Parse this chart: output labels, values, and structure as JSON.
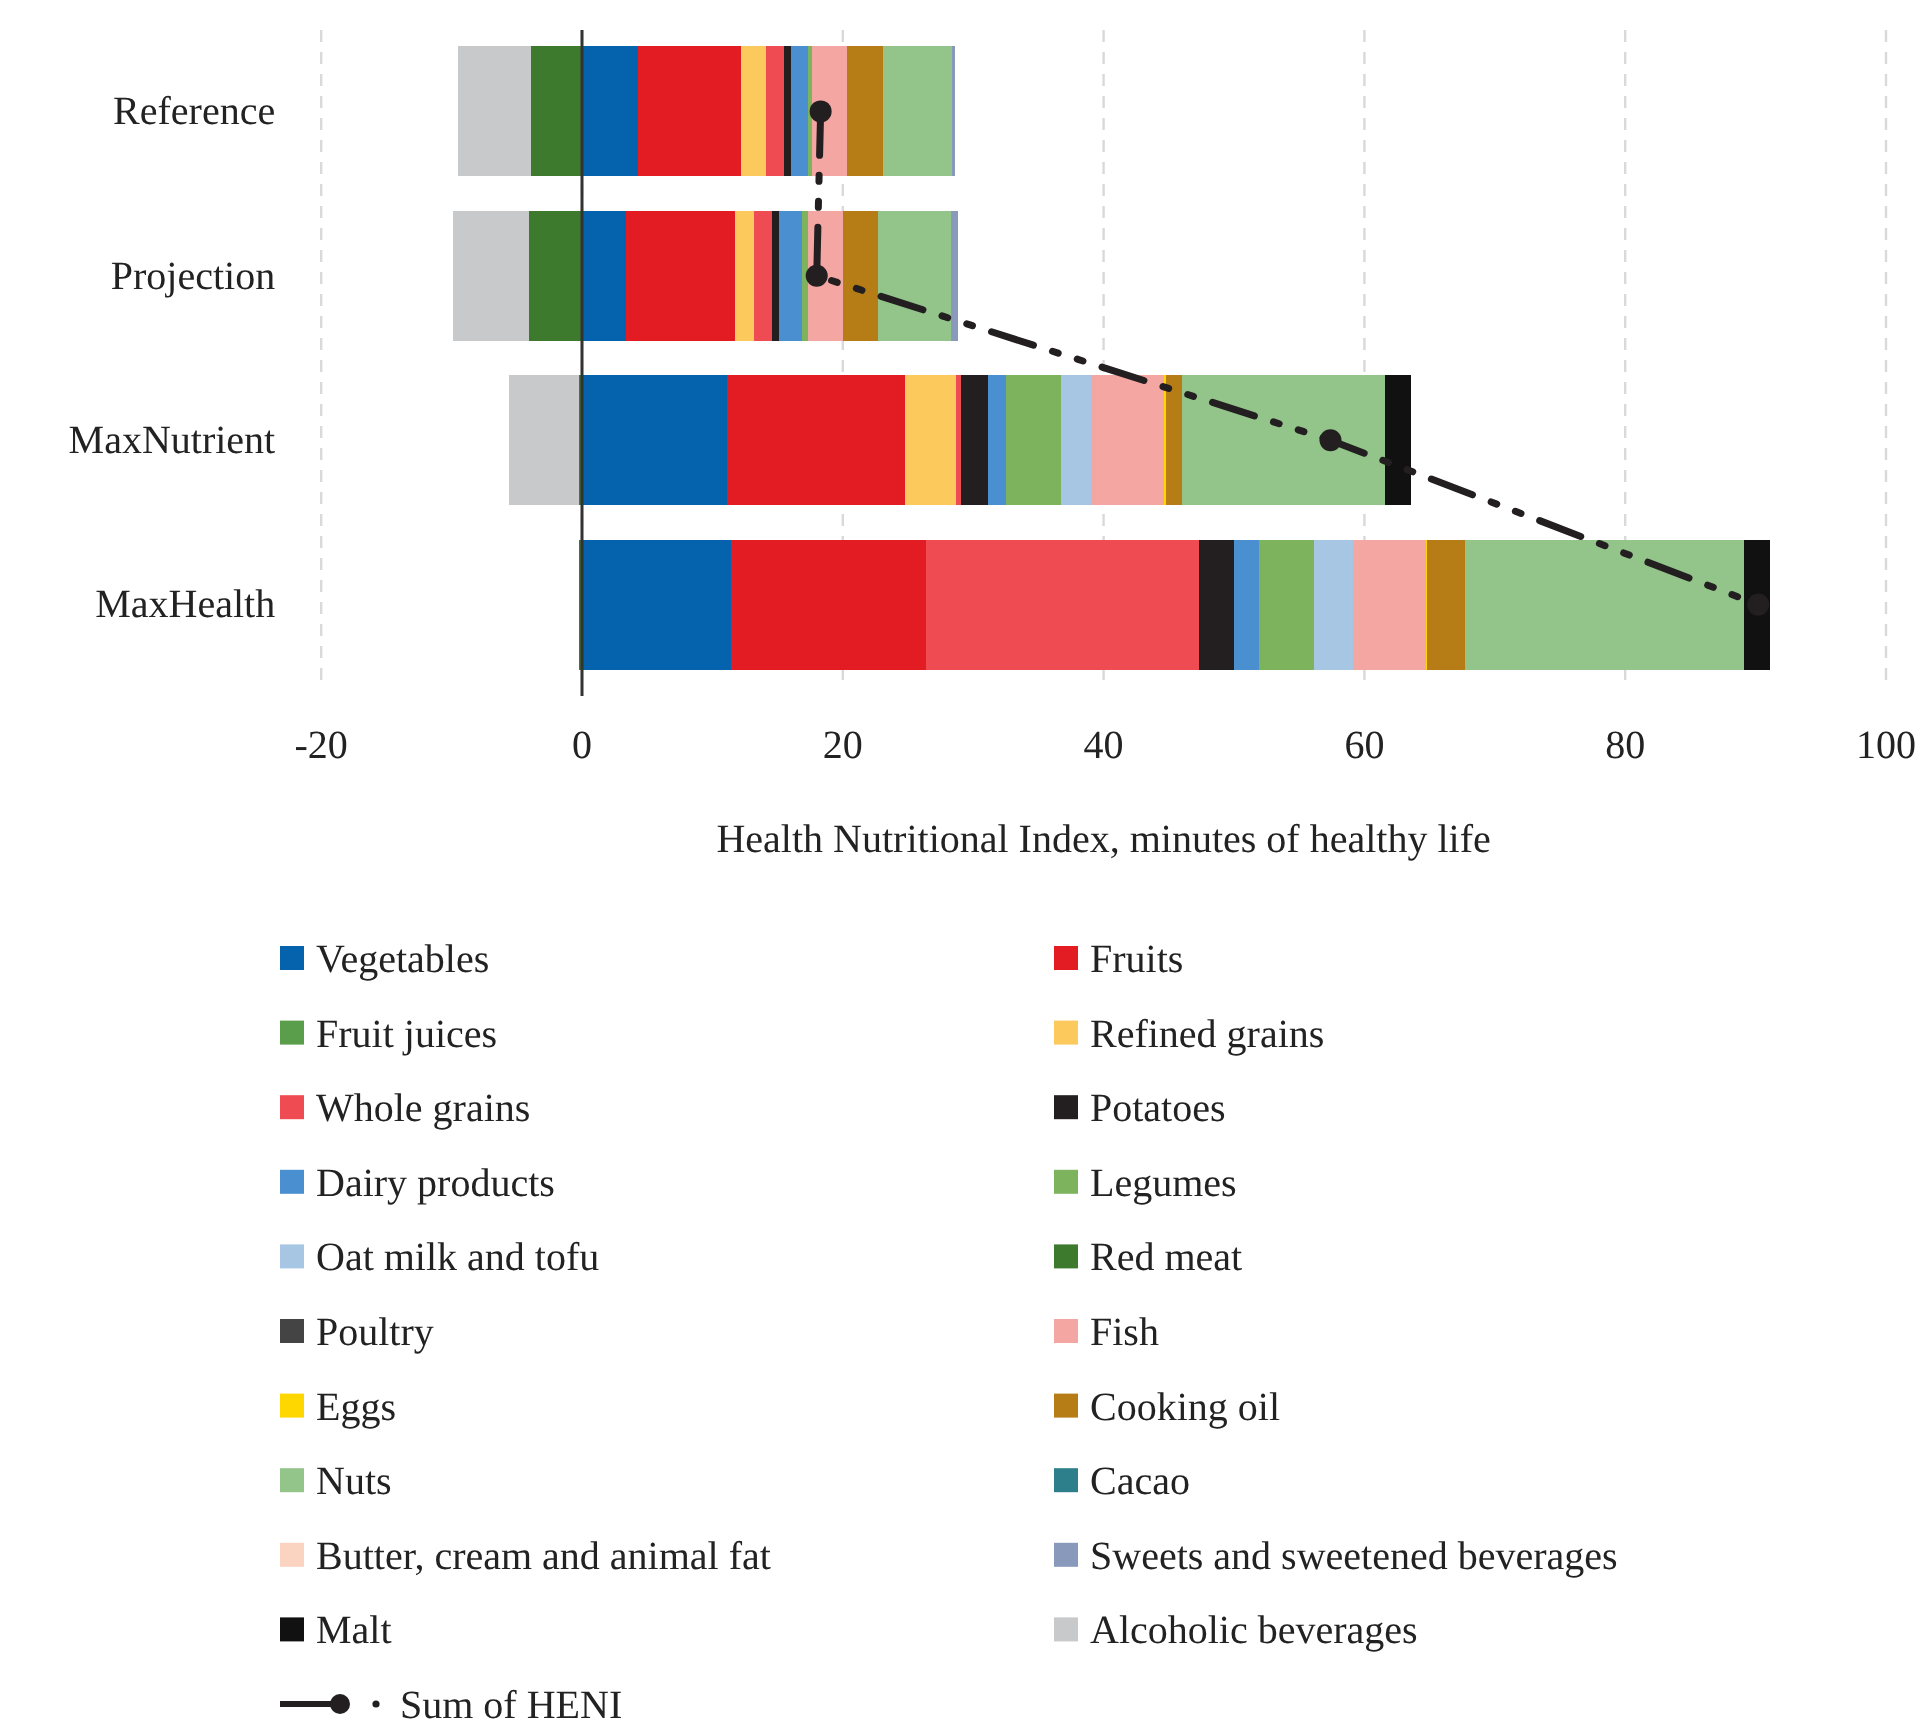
{
  "chart_data": {
    "type": "bar",
    "orientation": "horizontal",
    "stacked": true,
    "xlabel": "Health Nutritional Index, minutes of healthy life",
    "categories": [
      "Reference",
      "Projection",
      "MaxNutrient",
      "MaxHealth"
    ],
    "xlim": [
      -20,
      100
    ],
    "xticks": [
      -20,
      0,
      20,
      40,
      60,
      80,
      100
    ],
    "grid": "x",
    "legend": "bottom",
    "series": [
      {
        "name": "Vegetables",
        "color": "#0563ad",
        "values": [
          4.3,
          3.4,
          11.1,
          11.4
        ]
      },
      {
        "name": "Fruits",
        "color": "#e31b23",
        "values": [
          7.9,
          8.3,
          13.7,
          15.0
        ]
      },
      {
        "name": "Fruit juices",
        "color": "#5a9e4b",
        "values": [
          0,
          0,
          0,
          0
        ]
      },
      {
        "name": "Refined grains",
        "color": "#fbc95c",
        "values": [
          1.9,
          1.5,
          3.9,
          0
        ]
      },
      {
        "name": "Whole grains",
        "color": "#ee4b52",
        "values": [
          1.4,
          1.4,
          0.4,
          20.9
        ]
      },
      {
        "name": "Potatoes",
        "color": "#231f20",
        "values": [
          0.5,
          0.5,
          2.0,
          2.7
        ]
      },
      {
        "name": "Dairy products",
        "color": "#4a90d0",
        "values": [
          1.3,
          1.8,
          1.4,
          1.9
        ]
      },
      {
        "name": "Legumes",
        "color": "#7cb35c",
        "values": [
          0.3,
          0.4,
          4.2,
          4.2
        ]
      },
      {
        "name": "Oat milk and tofu",
        "color": "#a7c6e3",
        "values": [
          0,
          0,
          2.3,
          3.0
        ]
      },
      {
        "name": "Red meat",
        "color": "#3e7a2e",
        "values": [
          -3.9,
          -4.1,
          -0.2,
          -0.2
        ]
      },
      {
        "name": "Poultry",
        "color": "#444444",
        "values": [
          0,
          0,
          0,
          0
        ]
      },
      {
        "name": "Fish",
        "color": "#f4a6a3",
        "values": [
          2.7,
          2.7,
          5.6,
          5.6
        ]
      },
      {
        "name": "Eggs",
        "color": "#ffd700",
        "values": [
          0,
          0,
          0.2,
          0.1
        ]
      },
      {
        "name": "Cooking oil",
        "color": "#b67d16",
        "values": [
          2.8,
          2.7,
          1.2,
          2.9
        ]
      },
      {
        "name": "Nuts",
        "color": "#93c48a",
        "values": [
          5.3,
          5.6,
          15.6,
          21.4
        ]
      },
      {
        "name": "Cacao",
        "color": "#2e7f8c",
        "values": [
          0,
          0,
          0,
          0
        ]
      },
      {
        "name": "Butter, cream and animal fat",
        "color": "#fad4c0",
        "values": [
          0,
          0,
          0,
          0
        ]
      },
      {
        "name": "Sweets and sweetened beverages",
        "color": "#8899bb",
        "values": [
          0.2,
          0.5,
          0,
          0
        ]
      },
      {
        "name": "Malt",
        "color": "#111111",
        "values": [
          0,
          0,
          2.0,
          2.0
        ]
      },
      {
        "name": "Alcoholic beverages",
        "color": "#c8c9cb",
        "values": [
          -5.6,
          -5.8,
          -5.4,
          0
        ]
      },
      {
        "name": "Sum of HENI",
        "type": "line",
        "color": "#231f20",
        "marker": "circle",
        "line_style": "dashed",
        "values": [
          18.3,
          18.0,
          57.4,
          90.2
        ]
      }
    ]
  }
}
